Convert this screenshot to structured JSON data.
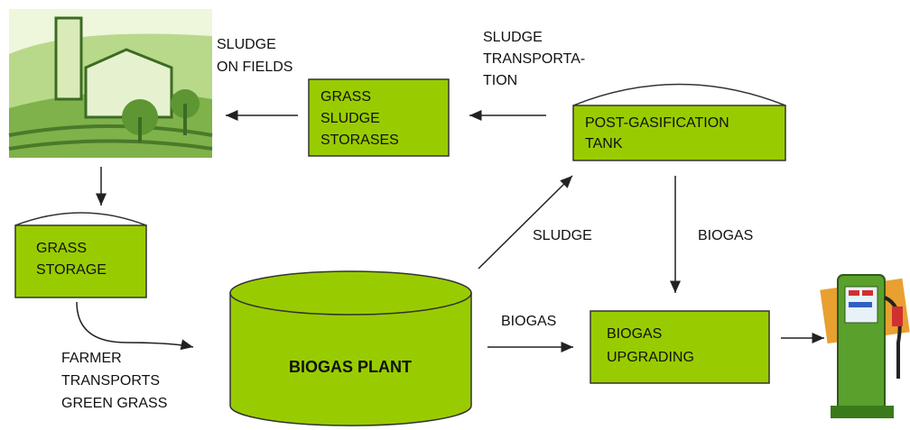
{
  "nodes": [
    {
      "label": [
        "GRASS",
        "SLUDGE",
        "STORASES"
      ]
    },
    {
      "label": [
        "POST-GASIFICATION",
        "TANK"
      ]
    },
    {
      "label": [
        "GRASS",
        "STORAGE"
      ]
    },
    {
      "label": [
        "BIOGAS PLANT"
      ]
    },
    {
      "label": [
        "BIOGAS",
        "UPGRADING"
      ]
    }
  ],
  "edge_labels": [
    [
      "SLUDGE",
      "ON FIELDS"
    ],
    [
      "SLUDGE",
      "TRANSPORTA-",
      "TION"
    ],
    [
      "SLUDGE"
    ],
    [
      "BIOGAS"
    ],
    [
      "BIOGAS"
    ],
    [
      "FARMER",
      "TRANSPORTS",
      "GREEN GRASS"
    ]
  ]
}
